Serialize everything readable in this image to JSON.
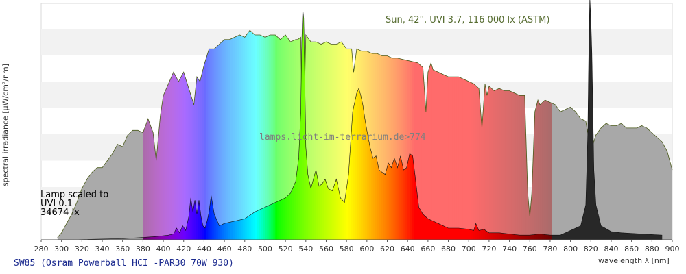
{
  "chart_data": {
    "type": "area",
    "title": "SW85 (Osram Powerball HCI -PAR30 70W 930)",
    "xlabel": "wavelength λ [nm]",
    "ylabel": "spectral irradiance [µW/cm²/nm]",
    "xlim": [
      280,
      900
    ],
    "ylim": [
      0,
      1
    ],
    "x_ticks": [
      280,
      300,
      320,
      340,
      360,
      380,
      400,
      420,
      440,
      460,
      480,
      500,
      520,
      540,
      560,
      580,
      600,
      620,
      640,
      660,
      680,
      700,
      720,
      740,
      760,
      780,
      800,
      820,
      840,
      860,
      880,
      900
    ],
    "sun_caption": "Sun, 42°, UVI 3.7, 116 000 lx (ASTM)",
    "watermark": "lamps.licht-im-terrarium.de>774",
    "lamp_caption": [
      "Lamp scaled to",
      "UVI 0.1",
      "34674 lx"
    ],
    "series": [
      {
        "name": "Sun, 42°, UVI 3.7, 116 000 lx (ASTM)",
        "x": [
          296,
          300,
          305,
          310,
          315,
          320,
          325,
          330,
          335,
          340,
          345,
          350,
          355,
          360,
          365,
          370,
          375,
          380,
          385,
          390,
          393,
          397,
          400,
          405,
          410,
          415,
          420,
          425,
          430,
          433,
          436,
          440,
          445,
          450,
          455,
          460,
          465,
          470,
          475,
          480,
          485,
          490,
          495,
          500,
          505,
          510,
          515,
          520,
          525,
          530,
          532,
          535,
          537,
          540,
          545,
          550,
          555,
          560,
          565,
          570,
          575,
          580,
          585,
          587,
          590,
          595,
          600,
          605,
          610,
          615,
          620,
          625,
          630,
          640,
          650,
          655,
          658,
          660,
          663,
          665,
          670,
          675,
          680,
          685,
          690,
          695,
          700,
          705,
          710,
          713,
          716,
          718,
          720,
          725,
          730,
          735,
          740,
          745,
          750,
          755,
          758,
          760,
          762,
          765,
          768,
          770,
          775,
          780,
          785,
          790,
          795,
          800,
          805,
          810,
          815,
          820,
          825,
          830,
          835,
          840,
          845,
          850,
          855,
          860,
          865,
          870,
          875,
          880,
          885,
          890,
          895,
          900
        ],
        "y": [
          0.01,
          0.03,
          0.07,
          0.11,
          0.16,
          0.22,
          0.26,
          0.29,
          0.31,
          0.31,
          0.34,
          0.37,
          0.41,
          0.4,
          0.45,
          0.47,
          0.47,
          0.46,
          0.52,
          0.46,
          0.34,
          0.53,
          0.62,
          0.67,
          0.72,
          0.68,
          0.72,
          0.65,
          0.58,
          0.7,
          0.68,
          0.75,
          0.82,
          0.82,
          0.84,
          0.86,
          0.86,
          0.87,
          0.88,
          0.87,
          0.9,
          0.88,
          0.88,
          0.87,
          0.88,
          0.88,
          0.86,
          0.88,
          0.85,
          0.86,
          0.86,
          0.87,
          0.3,
          0.88,
          0.85,
          0.85,
          0.84,
          0.85,
          0.84,
          0.84,
          0.85,
          0.82,
          0.82,
          0.72,
          0.82,
          0.81,
          0.81,
          0.8,
          0.8,
          0.79,
          0.79,
          0.78,
          0.78,
          0.77,
          0.76,
          0.74,
          0.55,
          0.72,
          0.76,
          0.73,
          0.72,
          0.71,
          0.7,
          0.7,
          0.7,
          0.69,
          0.68,
          0.67,
          0.65,
          0.48,
          0.67,
          0.62,
          0.66,
          0.64,
          0.65,
          0.64,
          0.64,
          0.63,
          0.62,
          0.62,
          0.2,
          0.1,
          0.2,
          0.55,
          0.6,
          0.58,
          0.6,
          0.59,
          0.58,
          0.55,
          0.56,
          0.57,
          0.55,
          0.52,
          0.51,
          0.38,
          0.45,
          0.48,
          0.5,
          0.49,
          0.49,
          0.5,
          0.48,
          0.48,
          0.48,
          0.49,
          0.48,
          0.46,
          0.44,
          0.42,
          0.38,
          0.3
        ]
      },
      {
        "name": "SW85 (Osram Powerball HCI -PAR30 70W 930)",
        "x": [
          310,
          360,
          380,
          395,
          405,
          410,
          413,
          416,
          419,
          422,
          425,
          427,
          429,
          431,
          433,
          435,
          437,
          439,
          441,
          443,
          445,
          447,
          450,
          455,
          460,
          470,
          480,
          490,
          500,
          510,
          520,
          525,
          530,
          533,
          535,
          536,
          537,
          538,
          539,
          540,
          542,
          545,
          548,
          550,
          553,
          556,
          559,
          562,
          566,
          570,
          574,
          578,
          582,
          586,
          590,
          592,
          594,
          596,
          598,
          600,
          603,
          606,
          609,
          612,
          615,
          618,
          621,
          624,
          627,
          630,
          633,
          636,
          639,
          642,
          645,
          648,
          651,
          655,
          660,
          665,
          670,
          680,
          690,
          700,
          705,
          707,
          710,
          715,
          720,
          730,
          740,
          750,
          760,
          770,
          780,
          790,
          800,
          810,
          815,
          817,
          818,
          819,
          820,
          821,
          822,
          823,
          825,
          830,
          840,
          850,
          870,
          890
        ],
        "y": [
          0.0,
          0.005,
          0.01,
          0.015,
          0.02,
          0.025,
          0.05,
          0.03,
          0.06,
          0.04,
          0.1,
          0.18,
          0.12,
          0.17,
          0.11,
          0.17,
          0.1,
          0.06,
          0.05,
          0.08,
          0.12,
          0.19,
          0.11,
          0.06,
          0.07,
          0.08,
          0.09,
          0.12,
          0.14,
          0.16,
          0.18,
          0.2,
          0.25,
          0.35,
          0.55,
          0.85,
          0.99,
          0.95,
          0.7,
          0.4,
          0.28,
          0.22,
          0.27,
          0.3,
          0.23,
          0.24,
          0.26,
          0.22,
          0.21,
          0.26,
          0.18,
          0.16,
          0.28,
          0.55,
          0.63,
          0.65,
          0.62,
          0.58,
          0.52,
          0.47,
          0.4,
          0.35,
          0.36,
          0.3,
          0.29,
          0.28,
          0.33,
          0.31,
          0.35,
          0.31,
          0.36,
          0.3,
          0.31,
          0.37,
          0.36,
          0.25,
          0.14,
          0.11,
          0.09,
          0.08,
          0.07,
          0.05,
          0.05,
          0.045,
          0.04,
          0.07,
          0.04,
          0.045,
          0.03,
          0.03,
          0.025,
          0.02,
          0.02,
          0.025,
          0.02,
          0.02,
          0.04,
          0.06,
          0.15,
          0.45,
          0.8,
          1.04,
          0.95,
          0.8,
          0.55,
          0.3,
          0.15,
          0.06,
          0.035,
          0.03,
          0.025,
          0.02
        ]
      }
    ]
  }
}
